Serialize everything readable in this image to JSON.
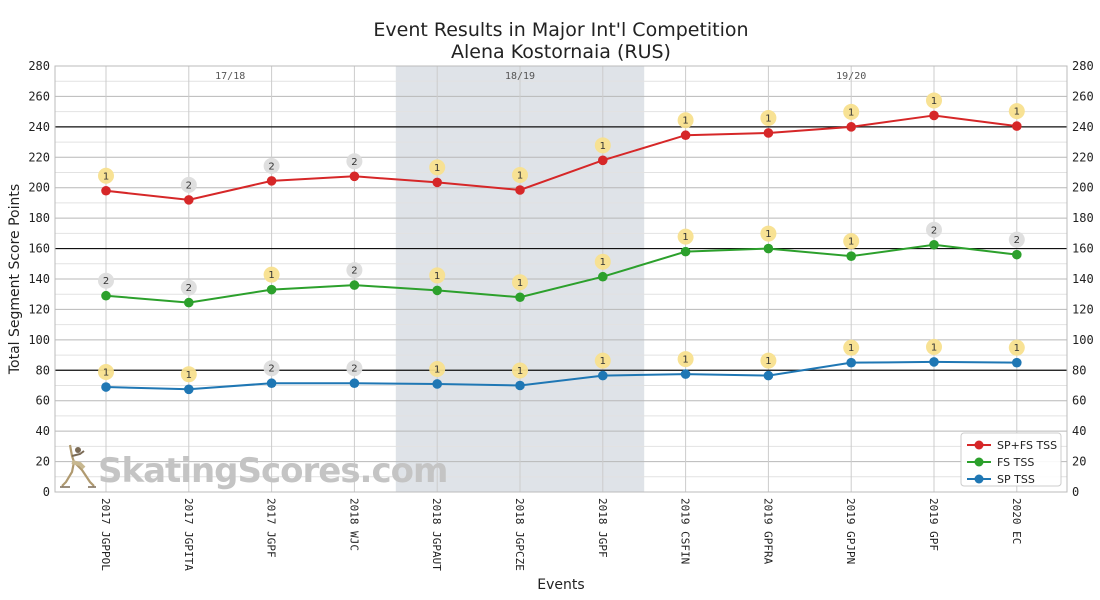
{
  "chart_data": {
    "type": "line",
    "title": "Event Results in Major Int'l Competition",
    "subtitle": "Alena Kostornaia (RUS)",
    "xlabel": "Events",
    "ylabel": "Total Segment Score Points",
    "ylim": [
      0,
      280
    ],
    "yticks": [
      0,
      20,
      40,
      60,
      80,
      100,
      120,
      140,
      160,
      180,
      200,
      220,
      240,
      260,
      280
    ],
    "reference_lines": [
      80,
      160,
      240
    ],
    "grid": true,
    "legend_position": "lower right",
    "categories": [
      "2017 JGPPOL",
      "2017 JGPITA",
      "2017 JGPF",
      "2018 WJC",
      "2018 JGPAUT",
      "2018 JGPCZE",
      "2018 JGPF",
      "2019 CSFIN",
      "2019 GPFRA",
      "2019 GPJPN",
      "2019 GPF",
      "2020 EC"
    ],
    "seasons": [
      {
        "label": "17/18",
        "start": 0,
        "end": 3,
        "shaded": false
      },
      {
        "label": "18/19",
        "start": 4,
        "end": 6,
        "shaded": true
      },
      {
        "label": "19/20",
        "start": 7,
        "end": 11,
        "shaded": false
      }
    ],
    "series": [
      {
        "name": "SP+FS TSS",
        "color": "#d62728",
        "values": [
          198,
          192,
          204.5,
          207.5,
          203.5,
          198.5,
          218,
          234.5,
          236,
          240,
          247.5,
          240.5
        ],
        "ranks": [
          "1",
          "2",
          "2",
          "2",
          "1",
          "1",
          "1",
          "1",
          "1",
          "1",
          "1",
          "1"
        ]
      },
      {
        "name": "FS TSS",
        "color": "#2ca02c",
        "values": [
          129,
          124.5,
          133,
          136,
          132.5,
          128,
          141.5,
          158,
          160,
          155,
          162.5,
          156
        ],
        "ranks": [
          "2",
          "2",
          "1",
          "2",
          "1",
          "1",
          "1",
          "1",
          "1",
          "1",
          "2",
          "2"
        ]
      },
      {
        "name": "SP TSS",
        "color": "#1f77b4",
        "values": [
          69,
          67.5,
          71.5,
          71.5,
          71,
          70,
          76.5,
          77.5,
          76.5,
          85,
          85.5,
          85
        ],
        "ranks": [
          "1",
          "1",
          "2",
          "2",
          "1",
          "1",
          "1",
          "1",
          "1",
          "1",
          "1",
          "1"
        ]
      }
    ]
  },
  "watermark": "SkatingScores.com",
  "colors": {
    "rank_first": "#f8e08e",
    "rank_other": "#dddddd",
    "shade": "#dfe3e8"
  }
}
